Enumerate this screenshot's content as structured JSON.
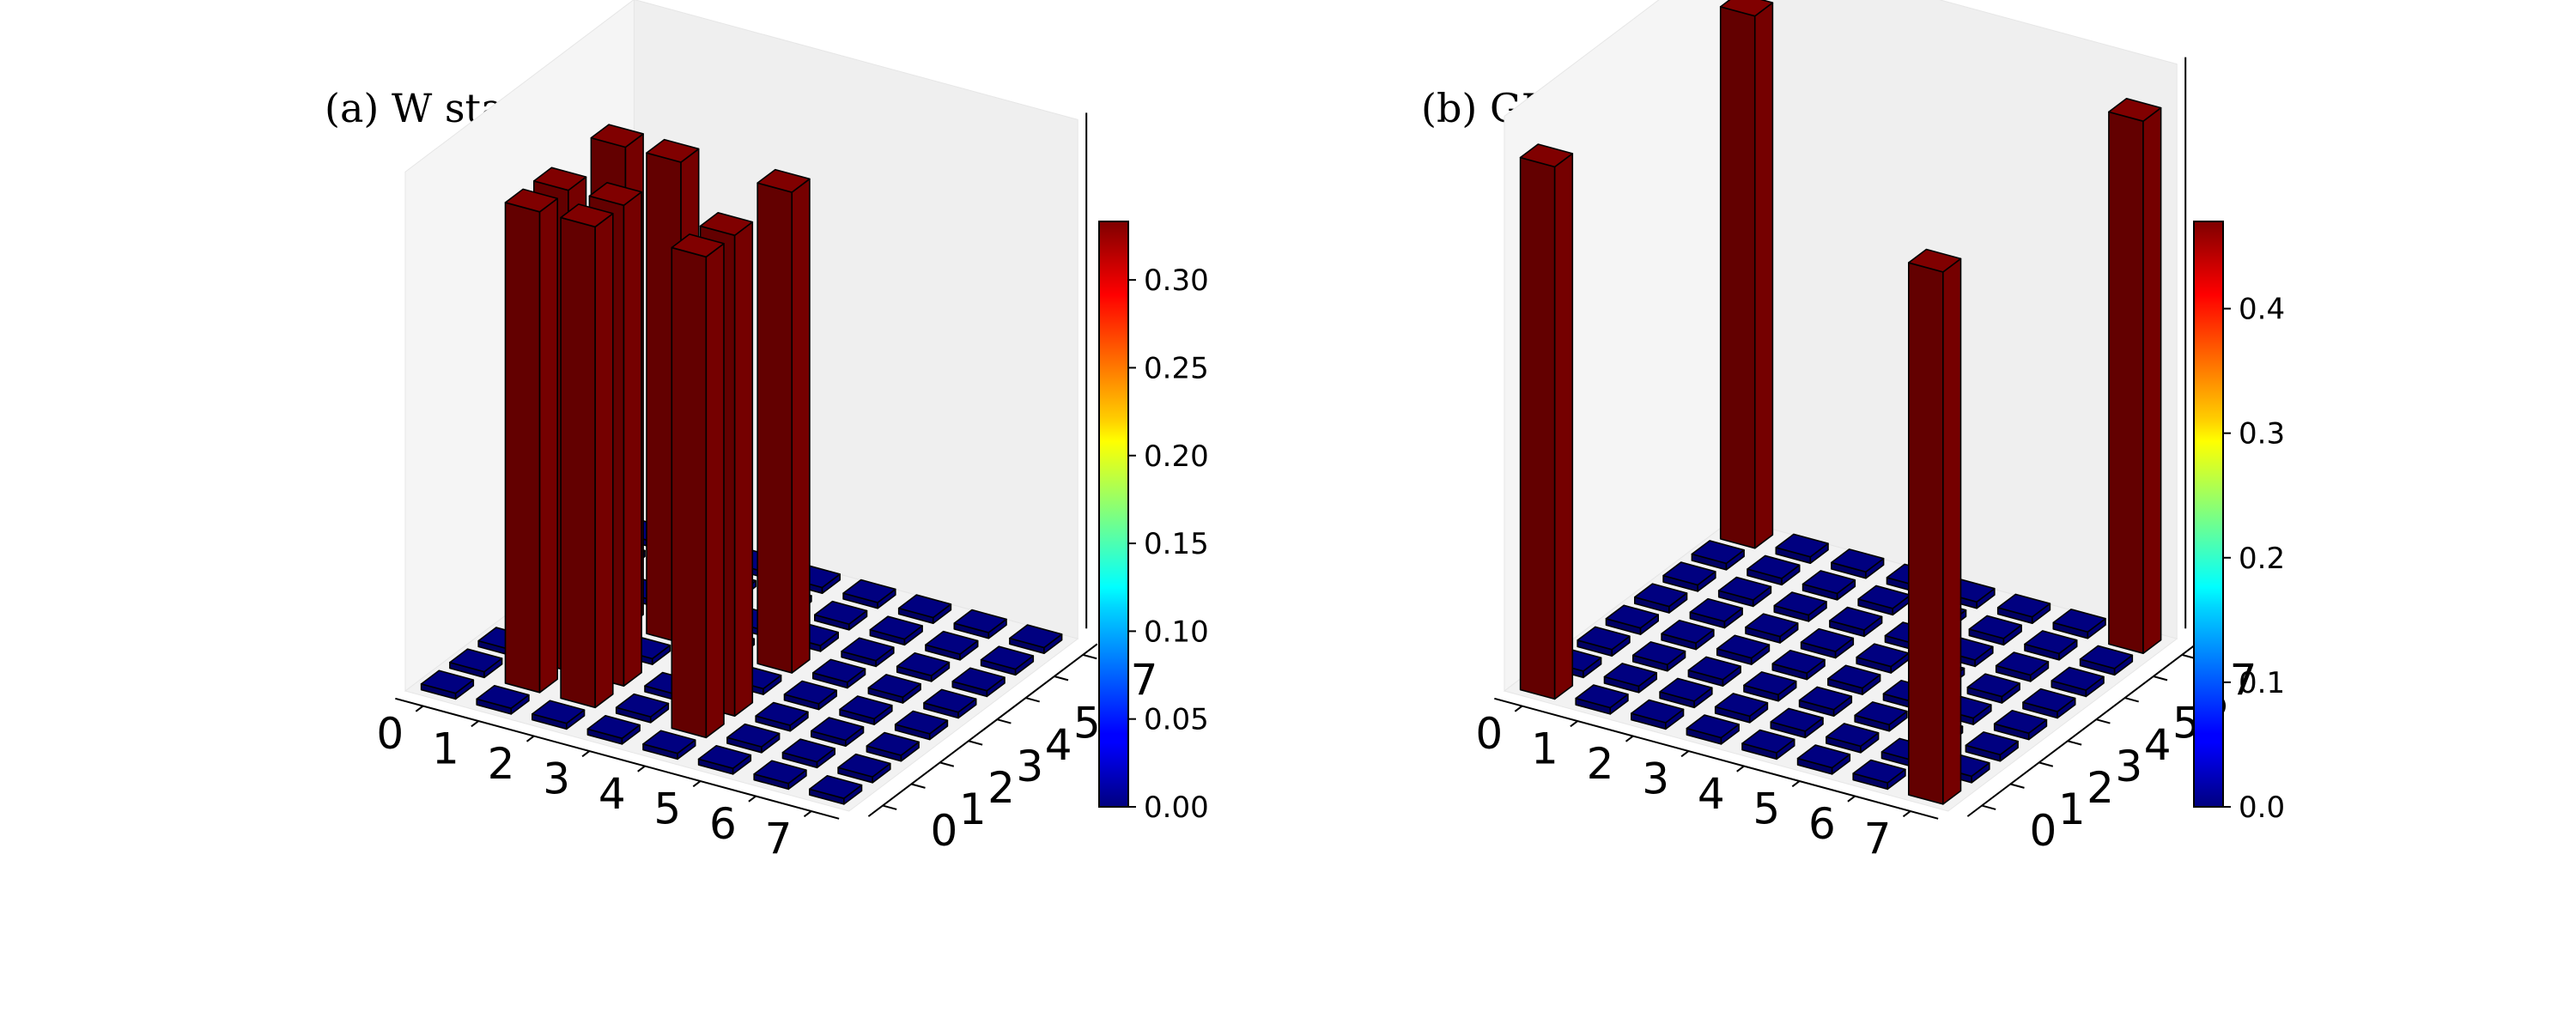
{
  "chart_data": [
    {
      "type": "bar3d",
      "title": "(a) W state",
      "x_ticks": [
        "0",
        "1",
        "2",
        "3",
        "4",
        "5",
        "6",
        "7"
      ],
      "y_ticks": [
        "0",
        "1",
        "2",
        "3",
        "4",
        "5",
        "6",
        "7"
      ],
      "colormap": "jet",
      "zlim": [
        0,
        0.3333
      ],
      "colorbar": {
        "range": [
          0,
          0.3333
        ],
        "ticks": [
          "0.00",
          "0.05",
          "0.10",
          "0.15",
          "0.20",
          "0.25",
          "0.30"
        ],
        "tick_values": [
          0,
          0.05,
          0.1,
          0.15,
          0.2,
          0.25,
          0.3
        ]
      },
      "bars": [
        {
          "x": 1,
          "y": 1,
          "z": 0.3333
        },
        {
          "x": 1,
          "y": 2,
          "z": 0.3333
        },
        {
          "x": 1,
          "y": 4,
          "z": 0.3333
        },
        {
          "x": 2,
          "y": 1,
          "z": 0.3333
        },
        {
          "x": 2,
          "y": 2,
          "z": 0.3333
        },
        {
          "x": 2,
          "y": 4,
          "z": 0.3333
        },
        {
          "x": 4,
          "y": 1,
          "z": 0.3333
        },
        {
          "x": 4,
          "y": 2,
          "z": 0.3333
        },
        {
          "x": 4,
          "y": 4,
          "z": 0.3333
        }
      ]
    },
    {
      "type": "bar3d",
      "title": "(b) GHZ state",
      "x_ticks": [
        "0",
        "1",
        "2",
        "3",
        "4",
        "5",
        "6",
        "7"
      ],
      "y_ticks": [
        "0",
        "1",
        "2",
        "3",
        "4",
        "5",
        "6",
        "7"
      ],
      "colormap": "jet",
      "zlim": [
        0,
        0.5
      ],
      "colorbar": {
        "range": [
          0,
          0.47
        ],
        "ticks": [
          "0.0",
          "0.1",
          "0.2",
          "0.3",
          "0.4"
        ],
        "tick_values": [
          0,
          0.1,
          0.2,
          0.3,
          0.4
        ]
      },
      "bars": [
        {
          "x": 0,
          "y": 0,
          "z": 0.5
        },
        {
          "x": 0,
          "y": 7,
          "z": 0.5
        },
        {
          "x": 7,
          "y": 0,
          "z": 0.5
        },
        {
          "x": 7,
          "y": 7,
          "z": 0.5
        }
      ]
    }
  ]
}
